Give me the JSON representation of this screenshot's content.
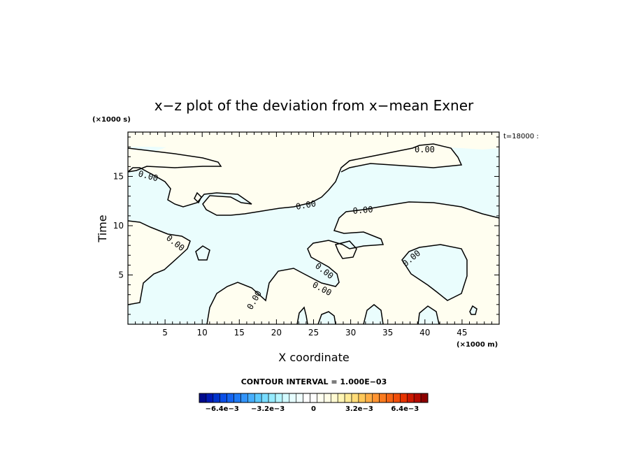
{
  "chart_data": {
    "type": "contour",
    "title": "x−z plot of the deviation from x−mean Exner",
    "xlabel": "X coordinate",
    "ylabel": "Time",
    "x_unit": "(×1000 m)",
    "y_unit": "(×1000 s)",
    "time_stamp": "t=18000 :",
    "xlim": [
      0,
      50
    ],
    "ylim": [
      0,
      19.5
    ],
    "x_ticks": [
      5,
      10,
      15,
      20,
      25,
      30,
      35,
      40,
      45
    ],
    "y_ticks": [
      5,
      10,
      15
    ],
    "contour_interval_label": "CONTOUR INTERVAL = 1.000E−03",
    "contour_level_label": "0.00",
    "colorbar": {
      "tick_labels": [
        "−6.4e−3",
        "−3.2e−3",
        "0",
        "3.2e−3",
        "6.4e−3"
      ],
      "colors": [
        "#000a8c",
        "#0019b4",
        "#0033cc",
        "#0a4ee6",
        "#1464f0",
        "#1e7af5",
        "#3294fa",
        "#46aefc",
        "#5ac8fe",
        "#78dcff",
        "#96ebff",
        "#b4f5ff",
        "#d2faff",
        "#e6fdff",
        "#f0fefe",
        "#ffffff",
        "#ffffff",
        "#fffff0",
        "#fffde6",
        "#fffad2",
        "#fff5b4",
        "#ffeb96",
        "#ffdc78",
        "#ffc85a",
        "#ffae46",
        "#ff9432",
        "#fa7a1e",
        "#f56414",
        "#f04e0a",
        "#e63300",
        "#cc1900",
        "#b40a00",
        "#8c0000"
      ]
    },
    "fill_negative": "#eafdfd",
    "fill_positive": "#fffef0"
  }
}
